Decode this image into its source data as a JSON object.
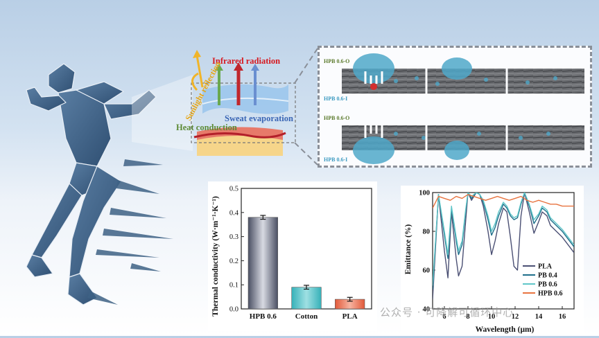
{
  "figure": {
    "schematic_labels": {
      "infrared": "Infrared radiation",
      "sunlight": "Sunlight reflection",
      "sweat": "Sweat evaporation",
      "heat": "Heat conduction"
    },
    "micro_panels": {
      "top_outer": "HPB 0.6-O",
      "top_inner": "HPB 0.6-I",
      "bottom_outer": "HPB 0.6-O",
      "bottom_inner": "HPB 0.6-I"
    }
  },
  "watermark": "公众号 · 可降解可循环中心",
  "colors": {
    "HPB 0.6": "#6e7489",
    "Cotton": "#4cc3c9",
    "PLA": "#ea7254",
    "PB 0.4": "#1e6e8a",
    "PB 0.6": "#5fc6c8",
    "HPB 0.6 line": "#e8733f",
    "PLA line": "#4a4f73"
  },
  "chart_data": [
    {
      "type": "bar",
      "categories": [
        "HPB 0.6",
        "Cotton",
        "PLA"
      ],
      "values": [
        0.38,
        0.09,
        0.04
      ],
      "errors": [
        0.008,
        0.008,
        0.008
      ],
      "ylabel": "Thermal conductivity (W·m⁻¹·K⁻¹)",
      "ylim": [
        0,
        0.5
      ],
      "yticks": [
        "0.0",
        "0.1",
        "0.2",
        "0.3",
        "0.4",
        "0.5"
      ],
      "grid": false
    },
    {
      "type": "line",
      "xlabel": "Wavelength (μm)",
      "ylabel": "Emittance (%)",
      "xlim": [
        5,
        17
      ],
      "ylim": [
        40,
        100
      ],
      "xticks": [
        "6",
        "8",
        "10",
        "12",
        "14",
        "16"
      ],
      "yticks": [
        "40",
        "60",
        "80",
        "100"
      ],
      "legend": "bottom-right",
      "series": [
        {
          "name": "PLA",
          "x": [
            5,
            5.5,
            6,
            6.3,
            6.6,
            7,
            7.2,
            7.5,
            7.8,
            8,
            8.3,
            8.7,
            9,
            9.3,
            9.7,
            10,
            10.3,
            10.6,
            11,
            11.3,
            11.6,
            11.9,
            12.2,
            12.5,
            12.8,
            13.2,
            13.6,
            14,
            14.3,
            14.7,
            15,
            15.5,
            16,
            16.5,
            17
          ],
          "y": [
            45,
            99,
            70,
            56,
            90,
            66,
            57,
            62,
            85,
            100,
            96,
            100,
            99,
            93,
            80,
            68,
            75,
            84,
            92,
            90,
            77,
            62,
            60,
            88,
            100,
            90,
            79,
            85,
            90,
            88,
            83,
            80,
            77,
            73,
            69
          ]
        },
        {
          "name": "PB 0.4",
          "x": [
            5,
            5.5,
            6,
            6.3,
            6.6,
            7,
            7.2,
            7.5,
            7.8,
            8,
            8.3,
            8.7,
            9,
            9.3,
            9.7,
            10,
            10.3,
            10.6,
            11,
            11.3,
            11.6,
            11.9,
            12.2,
            12.5,
            12.8,
            13.2,
            13.6,
            14,
            14.3,
            14.7,
            15,
            15.5,
            16,
            16.5,
            17
          ],
          "y": [
            50,
            99,
            78,
            66,
            92,
            75,
            68,
            73,
            90,
            100,
            97,
            100,
            99,
            95,
            86,
            78,
            82,
            88,
            94,
            92,
            88,
            86,
            87,
            94,
            100,
            93,
            84,
            88,
            92,
            90,
            86,
            83,
            80,
            76,
            72
          ]
        },
        {
          "name": "PB 0.6",
          "x": [
            5,
            5.5,
            6,
            6.3,
            6.6,
            7,
            7.2,
            7.5,
            7.8,
            8,
            8.3,
            8.7,
            9,
            9.3,
            9.7,
            10,
            10.3,
            10.6,
            11,
            11.3,
            11.6,
            11.9,
            12.2,
            12.5,
            12.8,
            13.2,
            13.6,
            14,
            14.3,
            14.7,
            15,
            15.5,
            16,
            16.5,
            17
          ],
          "y": [
            52,
            99,
            80,
            68,
            93,
            77,
            70,
            75,
            91,
            100,
            98,
            100,
            99,
            96,
            88,
            80,
            84,
            90,
            95,
            93,
            89,
            87,
            88,
            95,
            100,
            94,
            86,
            89,
            93,
            91,
            87,
            84,
            81,
            77,
            73
          ]
        },
        {
          "name": "HPB 0.6",
          "x": [
            5,
            5.5,
            6,
            6.5,
            7,
            7.5,
            8,
            8.5,
            9,
            9.5,
            10,
            10.5,
            11,
            11.5,
            12,
            12.5,
            13,
            13.5,
            14,
            14.5,
            15,
            15.5,
            16,
            16.5,
            17
          ],
          "y": [
            92,
            98,
            97,
            96,
            98,
            97,
            99,
            98,
            97,
            96,
            97,
            98,
            97,
            96,
            97,
            98,
            96,
            95,
            96,
            95,
            94,
            94,
            93,
            93,
            93
          ]
        }
      ]
    }
  ]
}
